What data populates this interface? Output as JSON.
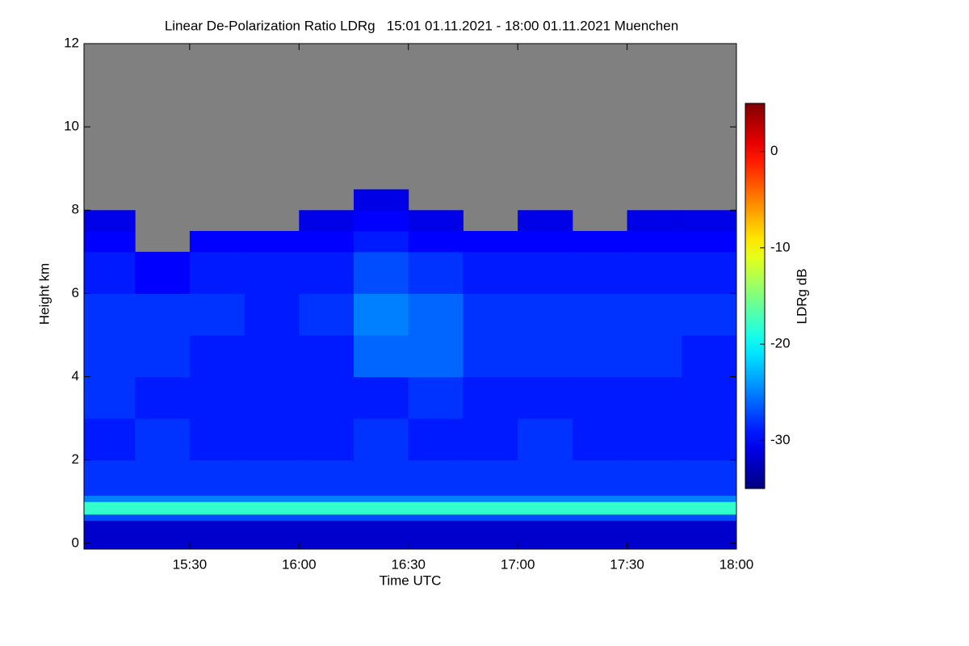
{
  "chart_data": {
    "type": "heatmap",
    "title": "Linear De-Polarization Ratio LDRg   15:01 01.11.2021 - 18:00 01.11.2021 Muenchen",
    "x_label": "Time UTC",
    "y_label": "Height km",
    "colorbar_label": "LDRg dB",
    "colormap": "jet",
    "missing_color": "#808080",
    "x_edges": [
      15.0167,
      15.25,
      15.5,
      15.75,
      16.0,
      16.25,
      16.5,
      16.75,
      17.0,
      17.25,
      17.5,
      17.75,
      18.0
    ],
    "y_edges": [
      -0.14,
      0.55,
      0.7,
      1.0,
      1.15,
      2,
      3,
      4,
      5,
      6,
      7,
      7.5,
      8,
      8.5,
      12
    ],
    "values": [
      [
        -32,
        -32,
        -32,
        -32,
        -32,
        -32,
        -32,
        -32,
        -32,
        -32,
        -32,
        -32
      ],
      [
        -27,
        -27,
        -27,
        -27,
        -27,
        -27,
        -27,
        -27,
        -27,
        -27,
        -27,
        -27
      ],
      [
        -18,
        -18,
        -18,
        -18,
        -18,
        -18,
        -18,
        -18,
        -18,
        -18,
        -18,
        -18
      ],
      [
        -25,
        -25,
        -25,
        -25,
        -25,
        -25,
        -25,
        -25,
        -25,
        -25,
        -25,
        -25
      ],
      [
        -28,
        -28,
        -28,
        -28,
        -28,
        -28,
        -28,
        -28,
        -28,
        -28,
        -28,
        -28
      ],
      [
        -29,
        -28,
        -29,
        -29,
        -29,
        -28,
        -29,
        -29,
        -28,
        -29,
        -29,
        -29
      ],
      [
        -28,
        -29,
        -29,
        -29,
        -29,
        -29,
        -28,
        -29,
        -29,
        -29,
        -29,
        -29
      ],
      [
        -28,
        -28,
        -29,
        -29,
        -29,
        -26,
        -26,
        -28,
        -28,
        -28,
        -28,
        -29
      ],
      [
        -28,
        -28,
        -28,
        -29,
        -28,
        -25,
        -26,
        -28,
        -28,
        -28,
        -28,
        -28
      ],
      [
        -29,
        -30,
        -29,
        -29,
        -29,
        -27,
        -28,
        -29,
        -29,
        -29,
        -29,
        -29
      ],
      [
        -30,
        null,
        -30,
        -30,
        -30,
        -29,
        -30,
        -30,
        -30,
        -30,
        -30,
        -30
      ],
      [
        -31,
        null,
        null,
        null,
        -31,
        -30,
        -31,
        null,
        -31,
        null,
        -31,
        -31
      ],
      [
        null,
        null,
        null,
        null,
        null,
        -31,
        null,
        null,
        null,
        null,
        null,
        null
      ],
      [
        null,
        null,
        null,
        null,
        null,
        null,
        null,
        null,
        null,
        null,
        null,
        null
      ]
    ],
    "xlim": [
      15.0167,
      18.0
    ],
    "xticks": [
      {
        "value": 15.5,
        "label": "15:30"
      },
      {
        "value": 16.0,
        "label": "16:00"
      },
      {
        "value": 16.5,
        "label": "16:30"
      },
      {
        "value": 17.0,
        "label": "17:00"
      },
      {
        "value": 17.5,
        "label": "17:30"
      },
      {
        "value": 18.0,
        "label": "18:00"
      }
    ],
    "ylim": [
      -0.14,
      12
    ],
    "yticks": [
      0,
      2,
      4,
      6,
      8,
      10,
      12
    ],
    "clim": [
      -35,
      5
    ],
    "cticks": [
      0,
      -10,
      -20,
      -30
    ]
  }
}
